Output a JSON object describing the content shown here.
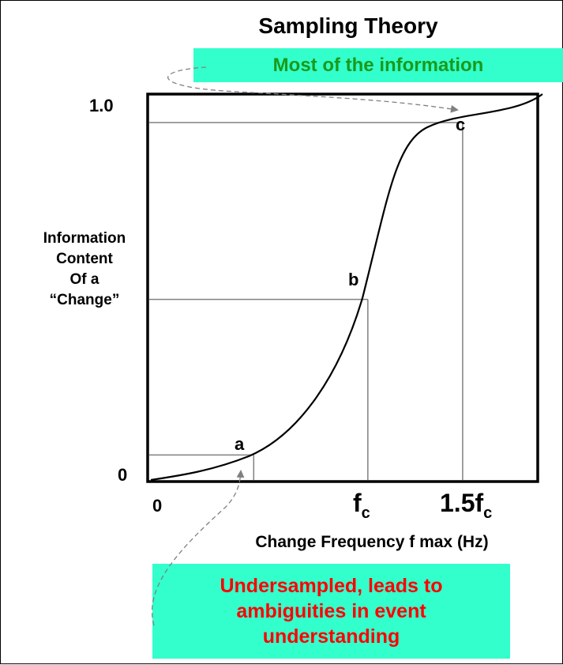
{
  "title": "Sampling Theory",
  "callout_top": {
    "text": "Most of the information",
    "bg": "#33ffcc",
    "color": "#1a9a1a"
  },
  "callout_bottom": {
    "lines": [
      "Undersampled, leads to",
      "ambiguities in event",
      "understanding"
    ],
    "bg": "#33ffcc",
    "color": "#ff0000"
  },
  "y_axis": {
    "label_lines": [
      "Information",
      "Content",
      "Of a",
      "“Change”"
    ],
    "tick_top": "1.0",
    "tick_bottom": "0"
  },
  "x_axis": {
    "tick_zero": "0",
    "tick_fc_base": "f",
    "tick_fc_sub": "c",
    "tick_15fc_base": "1.5f",
    "tick_15fc_sub": "c",
    "label": "Change Frequency f max (Hz)"
  },
  "points": {
    "a": {
      "label": "a",
      "x": 0.27,
      "y": 0.065
    },
    "b": {
      "label": "b",
      "x": 0.565,
      "y": 0.47
    },
    "c": {
      "label": "c",
      "x": 0.81,
      "y": 0.93
    }
  },
  "colors": {
    "curve": "#000000",
    "guides": "#808080",
    "frame": "#000000",
    "arrows": "#808080"
  }
}
